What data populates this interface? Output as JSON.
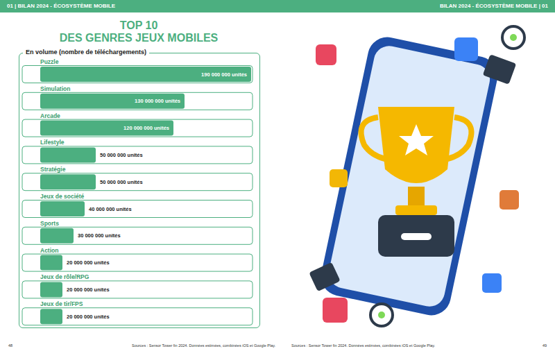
{
  "header": {
    "left": "01 | BILAN 2024 - ÉCOSYSTÈME MOBILE",
    "right": "BILAN 2024 - ÉCOSYSTÈME MOBILE | 01"
  },
  "chart_data": {
    "type": "bar",
    "orientation": "horizontal",
    "title": "TOP 10\nDES GENRES JEUX MOBILES",
    "subtitle": "En volume (nombre de téléchargements)",
    "categories": [
      "Puzzle",
      "Simulation",
      "Arcade",
      "Lifestyle",
      "Stratégie",
      "Jeux de société",
      "Sports",
      "Action",
      "Jeux de rôle/RPG",
      "Jeux de tir/FPS"
    ],
    "values": [
      190000000,
      130000000,
      120000000,
      50000000,
      50000000,
      40000000,
      30000000,
      20000000,
      20000000,
      20000000
    ],
    "value_labels": [
      "190 000 000 unités",
      "130 000 000 unités",
      "120 000 000 unités",
      "50 000 000 unités",
      "50 000 000 unités",
      "40 000 000 unités",
      "30 000 000 unités",
      "20 000 000 unités",
      "20 000 000 unités",
      "20 000 000 unités"
    ],
    "color": "#4caf80",
    "xlim": [
      0,
      190000000
    ],
    "data_labels": true,
    "tick_labels": false,
    "grid": false
  },
  "footer": {
    "left_page": "48",
    "right_page": "49",
    "sources": "Sources : Sensor Tower fin 2024. Données estimées, combinées iOS et Google Play."
  }
}
